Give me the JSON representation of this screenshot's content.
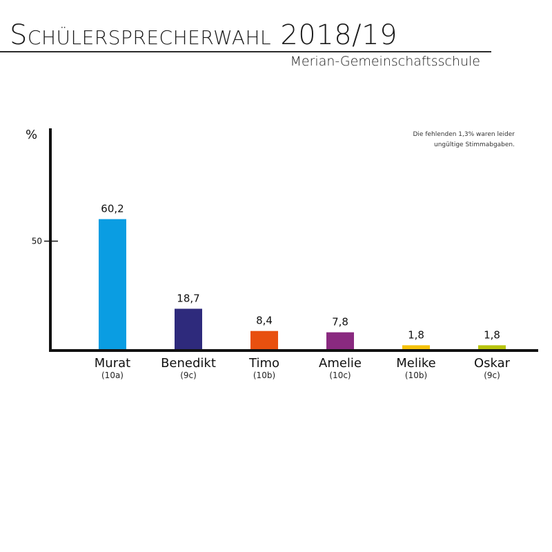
{
  "header": {
    "title_initial": "S",
    "title_rest": "chülersprecherwahl",
    "title_year": "2018/19",
    "subtitle": "Merian-Gemeinschaftsschule"
  },
  "note": {
    "line1": "Die fehlenden 1,3% waren leider",
    "line2": "ungültige Stimmabgaben."
  },
  "chart_data": {
    "type": "bar",
    "title": "Schülersprecherwahl 2018/19",
    "subtitle": "Merian-Gemeinschaftsschule",
    "unit_label": "%",
    "ylim": [
      0,
      100
    ],
    "yticks": [
      50
    ],
    "categories": [
      "Murat",
      "Benedikt",
      "Timo",
      "Amelie",
      "Melike",
      "Oskar"
    ],
    "classes": [
      "(10a)",
      "(9c)",
      "(10b)",
      "(10c)",
      "(10b)",
      "(9c)"
    ],
    "values": [
      60.2,
      18.7,
      8.4,
      7.8,
      1.8,
      1.8
    ],
    "value_labels": [
      "60,2",
      "18,7",
      "8,4",
      "7,8",
      "1,8",
      "1,8"
    ],
    "colors": [
      "#0a9de2",
      "#2e2a7c",
      "#e8500f",
      "#8a2a80",
      "#f5c20b",
      "#b8c40e"
    ],
    "grid": false,
    "legend": "none"
  }
}
